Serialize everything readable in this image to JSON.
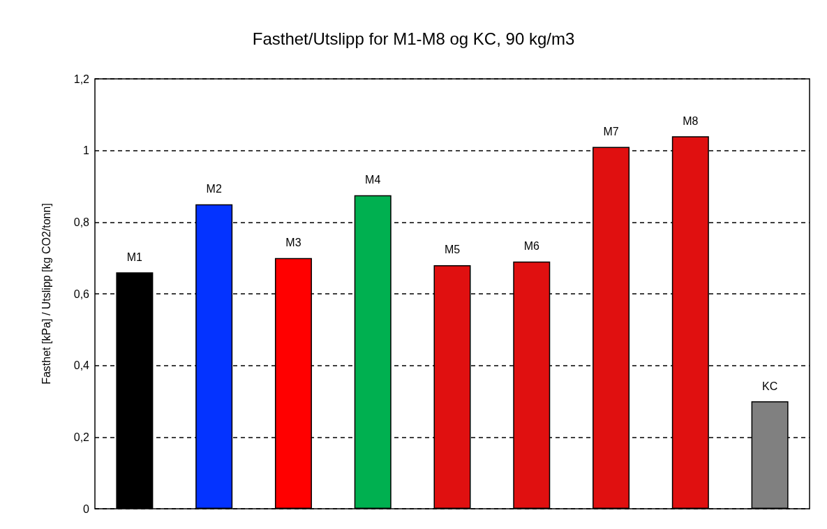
{
  "chart_data": {
    "type": "bar",
    "title": "Fasthet/Utslipp for M1-M8 og KC, 90 kg/m3",
    "ylabel": "Fasthet [kPa] / Utslipp [kg CO2/tonn]",
    "categories": [
      "M1",
      "M2",
      "M3",
      "M4",
      "M5",
      "M6",
      "M7",
      "M8",
      "KC"
    ],
    "values": [
      0.66,
      0.85,
      0.7,
      0.875,
      0.68,
      0.69,
      1.01,
      1.04,
      0.3
    ],
    "colors": [
      "#000000",
      "#0433ff",
      "#ff0000",
      "#00b050",
      "#e01010",
      "#e01010",
      "#e01010",
      "#e01010",
      "#808080"
    ],
    "ylim": [
      0,
      1.2
    ],
    "yticks": [
      {
        "value": 0,
        "label": "0"
      },
      {
        "value": 0.2,
        "label": "0,2"
      },
      {
        "value": 0.4,
        "label": "0,4"
      },
      {
        "value": 0.6,
        "label": "0,6"
      },
      {
        "value": 0.8,
        "label": "0,8"
      },
      {
        "value": 1,
        "label": "1"
      },
      {
        "value": 1.2,
        "label": "1,2"
      }
    ],
    "grid": "y",
    "tick_labels": "y"
  }
}
